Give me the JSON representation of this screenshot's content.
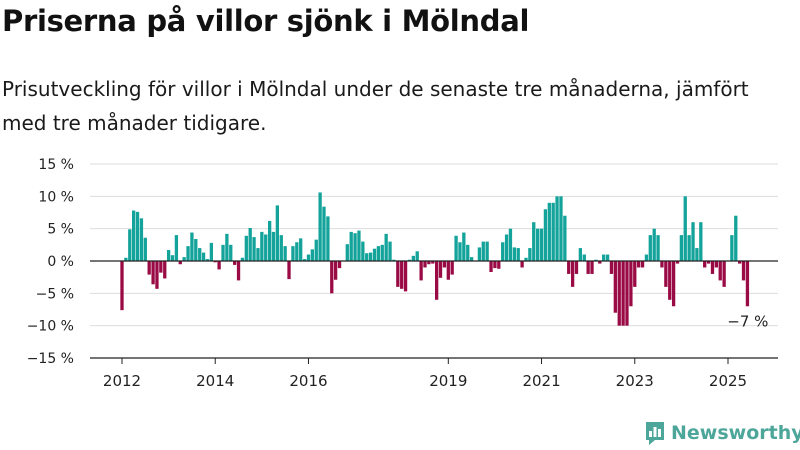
{
  "title": "Priserna på villor sjönk i Mölndal",
  "subtitle": "Prisutveckling för villor i Mölndal under de senaste tre månaderna, jämfört med tre månader tidigare.",
  "brand": {
    "name": "Newsworthy",
    "icon": "newsworthy-logo-icon"
  },
  "colors": {
    "positive": "#13a39a",
    "negative": "#9a0a45",
    "grid": "#dddddd",
    "axis": "#222222"
  },
  "chart_data": {
    "type": "bar",
    "title": "",
    "xlabel": "",
    "ylabel": "",
    "ylim": [
      -15,
      15
    ],
    "y_ticks": [
      15,
      10,
      5,
      0,
      -5,
      -10,
      -15
    ],
    "y_tick_labels": [
      "15 %",
      "10 %",
      "5 %",
      "0 %",
      "−5 %",
      "−10 %",
      "−15 %"
    ],
    "x_tick_labels": [
      {
        "label": "2012",
        "x": 2012.0
      },
      {
        "label": "2014",
        "x": 2014.0
      },
      {
        "label": "2016",
        "x": 2016.0
      },
      {
        "label": "2019",
        "x": 2019.0
      },
      {
        "label": "2021",
        "x": 2021.0
      },
      {
        "label": "2023",
        "x": 2023.0
      },
      {
        "label": "2025",
        "x": 2025.0
      }
    ],
    "grid": true,
    "x": [
      2012.0,
      2012.083,
      2012.167,
      2012.25,
      2012.333,
      2012.417,
      2012.5,
      2012.583,
      2012.667,
      2012.75,
      2012.833,
      2012.917,
      2013.0,
      2013.083,
      2013.167,
      2013.25,
      2013.333,
      2013.417,
      2013.5,
      2013.583,
      2013.667,
      2013.75,
      2013.833,
      2013.917,
      2014.0,
      2014.083,
      2014.167,
      2014.25,
      2014.333,
      2014.417,
      2014.5,
      2014.583,
      2014.667,
      2014.75,
      2014.833,
      2014.917,
      2015.0,
      2015.083,
      2015.167,
      2015.25,
      2015.333,
      2015.417,
      2015.5,
      2015.583,
      2015.667,
      2015.75,
      2015.833,
      2015.917,
      2016.0,
      2016.083,
      2016.167,
      2016.25,
      2016.333,
      2016.417,
      2016.5,
      2016.583,
      2016.667,
      2016.75,
      2016.833,
      2016.917,
      2017.0,
      2017.083,
      2017.167,
      2017.25,
      2017.333,
      2017.417,
      2017.5,
      2017.583,
      2017.667,
      2017.75,
      2017.833,
      2017.917,
      2018.0,
      2018.083,
      2018.167,
      2018.25,
      2018.333,
      2018.417,
      2018.5,
      2018.583,
      2018.667,
      2018.75,
      2018.833,
      2018.917,
      2019.0,
      2019.083,
      2019.167,
      2019.25,
      2019.333,
      2019.417,
      2019.5,
      2019.583,
      2019.667,
      2019.75,
      2019.833,
      2019.917,
      2020.0,
      2020.083,
      2020.167,
      2020.25,
      2020.333,
      2020.417,
      2020.5,
      2020.583,
      2020.667,
      2020.75,
      2020.833,
      2020.917,
      2021.0,
      2021.083,
      2021.167,
      2021.25,
      2021.333,
      2021.417,
      2021.5,
      2021.583,
      2021.667,
      2021.75,
      2021.833,
      2021.917,
      2022.0,
      2022.083,
      2022.167,
      2022.25,
      2022.333,
      2022.417,
      2022.5,
      2022.583,
      2022.667,
      2022.75,
      2022.833,
      2022.917,
      2023.0,
      2023.083,
      2023.167,
      2023.25,
      2023.333,
      2023.417,
      2023.5,
      2023.583,
      2023.667,
      2023.75,
      2023.833,
      2023.917,
      2024.0,
      2024.083,
      2024.167,
      2024.25,
      2024.333,
      2024.417,
      2024.5,
      2024.583,
      2024.667,
      2024.75,
      2024.833,
      2024.917,
      2025.0,
      2025.083,
      2025.167,
      2025.25,
      2025.333,
      2025.417
    ],
    "values": [
      -7.6,
      0.5,
      4.9,
      7.8,
      7.6,
      6.6,
      3.6,
      -2.1,
      -3.6,
      -4.3,
      -1.8,
      -2.7,
      1.7,
      0.9,
      4.0,
      -0.5,
      0.6,
      2.3,
      4.4,
      3.4,
      2.0,
      1.3,
      0.3,
      2.8,
      -0.2,
      -1.3,
      2.5,
      4.2,
      2.5,
      -0.6,
      -3.0,
      0.5,
      3.9,
      5.1,
      3.7,
      2.0,
      4.5,
      4.1,
      6.2,
      4.5,
      8.6,
      4.0,
      2.3,
      -2.8,
      2.3,
      2.9,
      3.5,
      0.3,
      1.0,
      1.8,
      3.3,
      10.6,
      8.4,
      6.9,
      -5.0,
      -2.9,
      -1.1,
      null,
      2.6,
      4.5,
      4.3,
      4.7,
      3.0,
      1.2,
      1.3,
      1.9,
      2.3,
      2.5,
      4.2,
      3.0,
      0.2,
      -4.0,
      -4.3,
      -4.7,
      0.2,
      0.8,
      1.5,
      -3.0,
      -1.0,
      -0.5,
      -0.4,
      -6.0,
      -2.6,
      -1.0,
      -2.9,
      -2.1,
      3.9,
      2.9,
      4.4,
      2.5,
      0.6,
      null,
      2.1,
      3.0,
      3.0,
      -1.7,
      -1.1,
      -1.2,
      2.9,
      4.1,
      5.0,
      2.1,
      2.0,
      -1.0,
      0.5,
      2.0,
      6.0,
      5.0,
      5.0,
      8.0,
      9.0,
      9.0,
      10.0,
      10.0,
      7.0,
      -2.0,
      -4.0,
      -2.0,
      2.0,
      1.0,
      -2.0,
      -2.0,
      0.2,
      -0.4,
      1.0,
      1.0,
      -2.0,
      -8.0,
      -10.0,
      -10.0,
      -10.0,
      -7.0,
      -4.0,
      -1.0,
      -1.0,
      1.0,
      4.0,
      5.0,
      4.0,
      -1.0,
      -4.0,
      -6.0,
      -7.0,
      -0.4,
      4.0,
      10.0,
      4.0,
      6.0,
      2.0,
      6.0,
      -1.0,
      -0.4,
      -2.0,
      -1.0,
      -3.0,
      -4.0,
      null,
      4.0,
      7.0,
      -0.4,
      -3.0,
      -7.0
    ],
    "annotations": [
      {
        "text": "−7 %",
        "x": 2025.417,
        "y": -7
      }
    ]
  }
}
